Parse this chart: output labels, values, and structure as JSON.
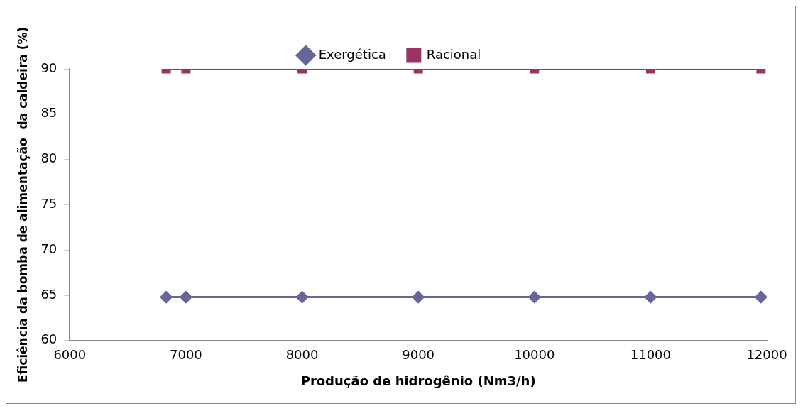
{
  "chart_data": {
    "type": "line",
    "xlabel": "Produção de hidrogênio (Nm3/h)",
    "ylabel": "Eficiência da bomba de alimentação  da caldeira (%)",
    "x": [
      6830,
      7000,
      8000,
      9000,
      10000,
      11000,
      11950
    ],
    "series": [
      {
        "name": "Exergética",
        "color": "#66669a",
        "values": [
          64.8,
          64.8,
          64.8,
          64.8,
          64.8,
          64.8,
          64.8
        ],
        "marker": "diamond"
      },
      {
        "name": "Racional",
        "color": "#993366",
        "values": [
          90,
          90,
          90,
          90,
          90,
          90,
          90
        ],
        "marker": "square"
      }
    ],
    "xlim": [
      6000,
      12000
    ],
    "xticks": [
      6000,
      7000,
      8000,
      9000,
      10000,
      11000,
      12000
    ],
    "ylim": [
      60,
      90
    ],
    "yticks": [
      60,
      65,
      70,
      75,
      80,
      85,
      90
    ],
    "grid": false,
    "legend": "top"
  }
}
